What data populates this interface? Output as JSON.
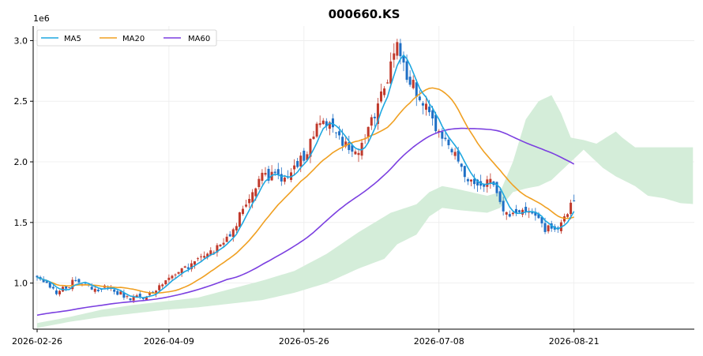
{
  "chart_data": {
    "type": "candlestick",
    "title": "000660.KS",
    "y_multiplier": "1e6",
    "ylim": [
      0.62,
      3.12
    ],
    "yticks": [
      1.0,
      1.5,
      2.0,
      2.5,
      3.0
    ],
    "ytick_labels": [
      "1.0",
      "1.5",
      "2.0",
      "2.5",
      "3.0"
    ],
    "xtick_labels": [
      "2026-02-26",
      "2026-04-09",
      "2026-05-26",
      "2026-07-08",
      "2026-08-21"
    ],
    "xtick_index": [
      0,
      41,
      83,
      125,
      167
    ],
    "n_bars": 168,
    "n_total": 205,
    "grid": true,
    "legend_placement": "upper-left",
    "colors": {
      "up": "#c0392b",
      "down": "#1f6fc5",
      "ma5": "#1ea7e0",
      "ma20": "#f0a022",
      "ma60": "#7b3fe0",
      "cloud_bull": "#d4edd9",
      "cloud_bear": "#fadada",
      "grid": "#ececec"
    },
    "legend": [
      {
        "name": "MA5",
        "color": "#1ea7e0"
      },
      {
        "name": "MA20",
        "color": "#f0a022"
      },
      {
        "name": "MA60",
        "color": "#7b3fe0"
      }
    ],
    "close_anchors": [
      [
        0,
        1.05
      ],
      [
        6,
        0.92
      ],
      [
        12,
        1.02
      ],
      [
        18,
        0.95
      ],
      [
        22,
        0.97
      ],
      [
        28,
        0.88
      ],
      [
        34,
        0.88
      ],
      [
        40,
        1.0
      ],
      [
        46,
        1.13
      ],
      [
        52,
        1.22
      ],
      [
        58,
        1.32
      ],
      [
        64,
        1.6
      ],
      [
        70,
        1.9
      ],
      [
        78,
        1.85
      ],
      [
        83,
        2.05
      ],
      [
        87,
        2.3
      ],
      [
        90,
        2.32
      ],
      [
        94,
        2.18
      ],
      [
        98,
        2.05
      ],
      [
        102,
        2.2
      ],
      [
        106,
        2.45
      ],
      [
        112,
        2.95
      ],
      [
        115,
        2.7
      ],
      [
        118,
        2.6
      ],
      [
        122,
        2.4
      ],
      [
        126,
        2.2
      ],
      [
        130,
        2.05
      ],
      [
        134,
        1.88
      ],
      [
        138,
        1.8
      ],
      [
        142,
        1.85
      ],
      [
        146,
        1.55
      ],
      [
        150,
        1.6
      ],
      [
        154,
        1.6
      ],
      [
        158,
        1.45
      ],
      [
        162,
        1.42
      ],
      [
        165,
        1.6
      ],
      [
        167,
        1.7
      ]
    ],
    "cloud_upper_anchors": [
      [
        0,
        0.67
      ],
      [
        10,
        0.72
      ],
      [
        20,
        0.78
      ],
      [
        30,
        0.82
      ],
      [
        40,
        0.85
      ],
      [
        50,
        0.88
      ],
      [
        60,
        0.95
      ],
      [
        70,
        1.02
      ],
      [
        80,
        1.1
      ],
      [
        90,
        1.24
      ],
      [
        100,
        1.42
      ],
      [
        110,
        1.58
      ],
      [
        118,
        1.65
      ],
      [
        122,
        1.75
      ],
      [
        126,
        1.8
      ],
      [
        130,
        1.78
      ],
      [
        135,
        1.75
      ],
      [
        140,
        1.72
      ],
      [
        144,
        1.75
      ],
      [
        148,
        2.0
      ],
      [
        152,
        2.35
      ],
      [
        156,
        2.5
      ],
      [
        160,
        2.55
      ],
      [
        163,
        2.4
      ],
      [
        166,
        2.2
      ],
      [
        170,
        2.18
      ],
      [
        174,
        2.15
      ],
      [
        180,
        2.25
      ],
      [
        182,
        2.2
      ],
      [
        186,
        2.12
      ],
      [
        190,
        2.12
      ],
      [
        195,
        2.12
      ],
      [
        200,
        2.12
      ],
      [
        205,
        2.12
      ]
    ],
    "cloud_lower_anchors": [
      [
        0,
        0.63
      ],
      [
        10,
        0.68
      ],
      [
        20,
        0.72
      ],
      [
        30,
        0.75
      ],
      [
        40,
        0.78
      ],
      [
        50,
        0.8
      ],
      [
        60,
        0.83
      ],
      [
        70,
        0.86
      ],
      [
        80,
        0.92
      ],
      [
        90,
        1.0
      ],
      [
        100,
        1.12
      ],
      [
        108,
        1.2
      ],
      [
        112,
        1.32
      ],
      [
        118,
        1.4
      ],
      [
        122,
        1.55
      ],
      [
        126,
        1.62
      ],
      [
        132,
        1.6
      ],
      [
        140,
        1.58
      ],
      [
        144,
        1.62
      ],
      [
        148,
        1.75
      ],
      [
        152,
        1.78
      ],
      [
        156,
        1.8
      ],
      [
        160,
        1.85
      ],
      [
        164,
        1.95
      ],
      [
        166,
        2.0
      ],
      [
        170,
        2.1
      ],
      [
        176,
        1.95
      ],
      [
        180,
        1.88
      ],
      [
        186,
        1.8
      ],
      [
        190,
        1.72
      ],
      [
        195,
        1.7
      ],
      [
        200,
        1.66
      ],
      [
        205,
        1.65
      ]
    ]
  }
}
